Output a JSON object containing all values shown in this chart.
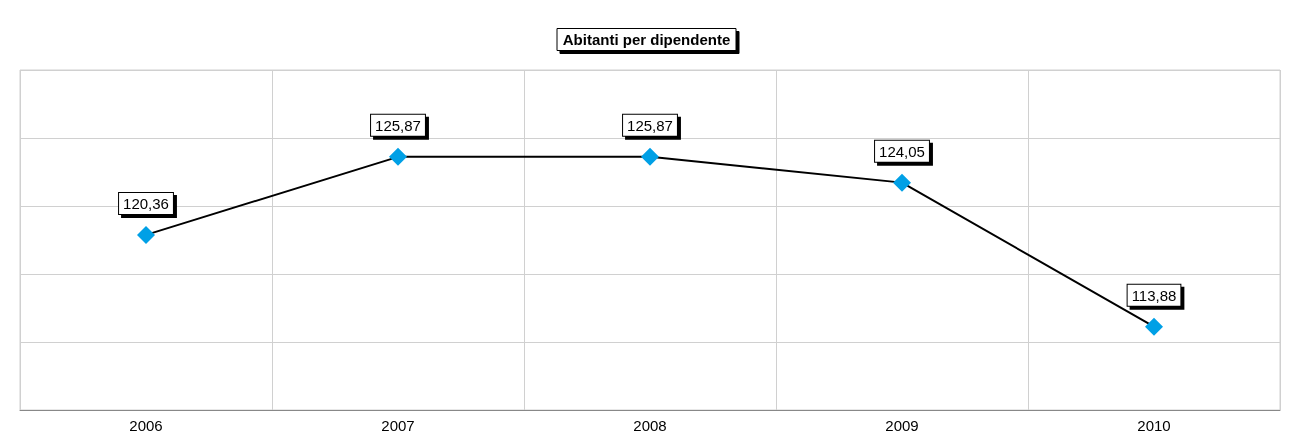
{
  "chart_data": {
    "type": "line",
    "title": "Abitanti per dipendente",
    "categories": [
      "2006",
      "2007",
      "2008",
      "2009",
      "2010"
    ],
    "series": [
      {
        "color": "#00a0e6",
        "values": [
          120.36,
          125.87,
          125.87,
          124.05,
          113.88
        ],
        "value_labels": [
          "120,36",
          "125,87",
          "125,87",
          "124,05",
          "113,88"
        ]
      }
    ],
    "ylim": [
      108,
      132
    ],
    "yticks": [
      {
        "value": 108,
        "label": null
      },
      {
        "value": 112.8,
        "label": null
      },
      {
        "value": 117.6,
        "label": null
      },
      {
        "value": 122.4,
        "label": null
      },
      {
        "value": 127.2,
        "label": null
      },
      {
        "value": 132,
        "label": null
      }
    ],
    "tick_labels": "x",
    "grid": true,
    "marker": "diamond",
    "line_style": "solid"
  }
}
